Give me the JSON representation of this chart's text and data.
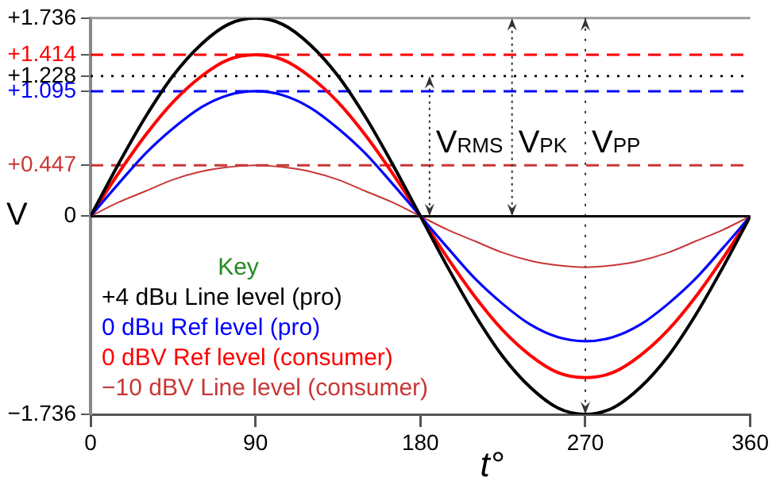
{
  "chart_data": {
    "type": "line",
    "xlabel": "t°",
    "ylabel": "V",
    "legend_title": "Key",
    "legend": "bottom left",
    "x": [
      0,
      15,
      30,
      45,
      60,
      75,
      90,
      105,
      120,
      135,
      150,
      165,
      180,
      195,
      210,
      225,
      240,
      255,
      270,
      285,
      300,
      315,
      330,
      345,
      360
    ],
    "series": [
      {
        "name": "+4 dBu Line level (pro)",
        "color": "#000000",
        "values": [
          0,
          0.45,
          0.87,
          1.23,
          1.5,
          1.68,
          1.736,
          1.68,
          1.5,
          1.23,
          0.87,
          0.45,
          0,
          -0.45,
          -0.87,
          -1.23,
          -1.5,
          -1.68,
          -1.736,
          -1.68,
          -1.5,
          -1.23,
          -0.87,
          -0.45,
          0
        ]
      },
      {
        "name": "0 dBu Ref level (pro)",
        "color": "#0000ff",
        "values": [
          0,
          0.28,
          0.55,
          0.77,
          0.95,
          1.06,
          1.095,
          1.06,
          0.95,
          0.77,
          0.55,
          0.28,
          0,
          -0.28,
          -0.55,
          -0.77,
          -0.95,
          -1.06,
          -1.095,
          -1.06,
          -0.95,
          -0.77,
          -0.55,
          -0.28,
          0
        ]
      },
      {
        "name": "0 dBV Ref level (consumer)",
        "color": "#ff0000",
        "values": [
          0,
          0.37,
          0.71,
          1.0,
          1.22,
          1.37,
          1.414,
          1.37,
          1.22,
          1.0,
          0.71,
          0.37,
          0,
          -0.37,
          -0.71,
          -1.0,
          -1.22,
          -1.37,
          -1.414,
          -1.37,
          -1.22,
          -1.0,
          -0.71,
          -0.37,
          0
        ]
      },
      {
        "name": "−10 dBV Line level (consumer)",
        "color": "#c83737",
        "values": [
          0,
          0.12,
          0.22,
          0.32,
          0.39,
          0.43,
          0.447,
          0.43,
          0.39,
          0.32,
          0.22,
          0.12,
          0,
          -0.12,
          -0.22,
          -0.32,
          -0.39,
          -0.43,
          -0.447,
          -0.43,
          -0.39,
          -0.32,
          -0.22,
          -0.12,
          0
        ]
      }
    ],
    "xlim": [
      0,
      360
    ],
    "xticks": [
      0,
      90,
      180,
      270,
      360
    ],
    "ylim": [
      -1.736,
      1.736
    ],
    "yticks": [
      {
        "value": -1.736,
        "label": "−1.736"
      },
      0,
      {
        "value": 0.447,
        "label": "+0.447"
      },
      {
        "value": 1.095,
        "label": "+1.095"
      },
      {
        "value": 1.228,
        "label": "+1.228"
      },
      {
        "value": 1.414,
        "label": "+1.414"
      },
      {
        "value": 1.736,
        "label": "+1.736"
      }
    ],
    "ref_lines": [
      {
        "axis": "y",
        "value": 1.414,
        "color": "#ff0000",
        "line_style": "dashed"
      },
      {
        "axis": "y",
        "value": 1.228,
        "color": "#000000",
        "line_style": "dotted"
      },
      {
        "axis": "y",
        "value": 1.095,
        "color": "#0000ff",
        "line_style": "dashed"
      },
      {
        "axis": "y",
        "value": 0.447,
        "color": "#c83737",
        "line_style": "dashed"
      },
      {
        "axis": "x",
        "value": 270,
        "color": "#333333",
        "line_style": "dotted"
      }
    ],
    "annotations": [
      "V$_{RMS}$",
      "V$_{PK}$",
      "V$_{PP}$"
    ],
    "grid": false
  }
}
